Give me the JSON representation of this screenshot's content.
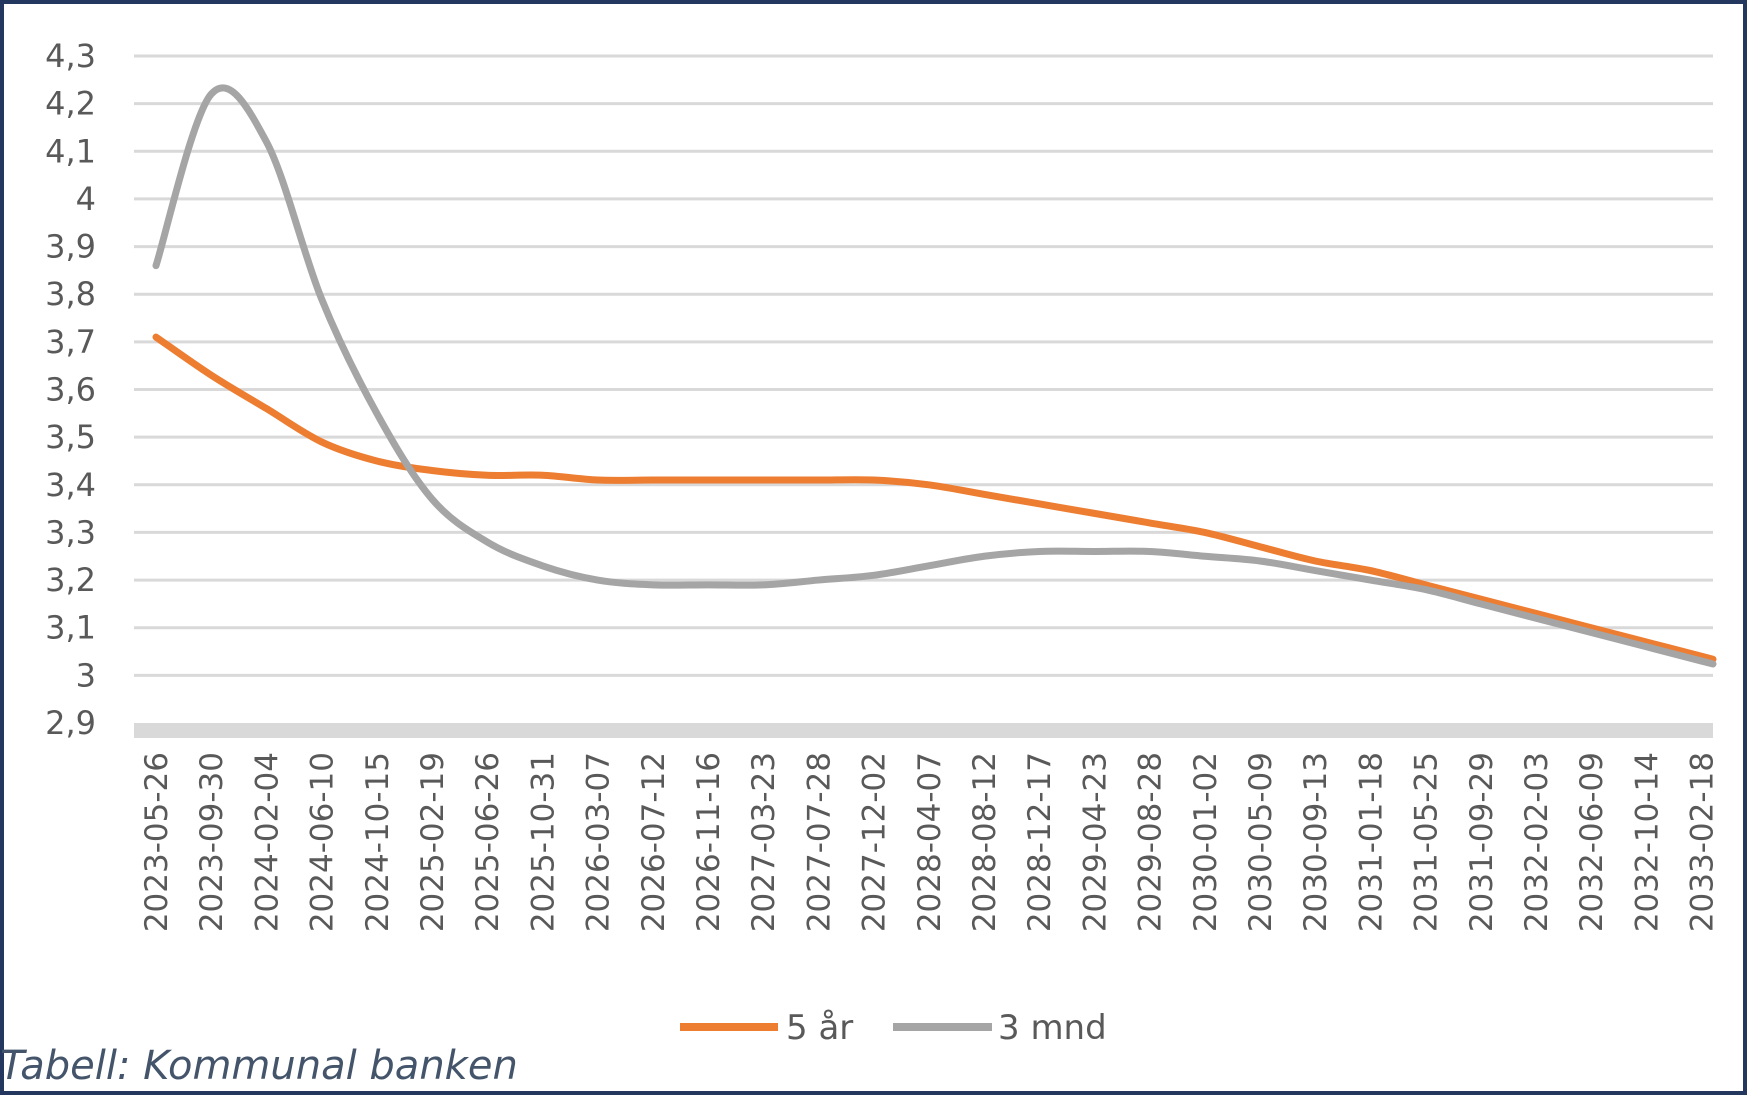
{
  "caption": "Tabell: Kommunal banken",
  "chart_data": {
    "type": "line",
    "title": "",
    "xlabel": "",
    "ylabel": "",
    "ylim": [
      2.9,
      4.3
    ],
    "yticks": [
      "4,3",
      "4,2",
      "4,1",
      "4",
      "3,9",
      "3,8",
      "3,7",
      "3,6",
      "3,5",
      "3,4",
      "3,3",
      "3,2",
      "3,1",
      "3",
      "2,9"
    ],
    "grid": true,
    "legend_position": "bottom",
    "categories": [
      "2023-05-26",
      "2023-09-30",
      "2024-02-04",
      "2024-06-10",
      "2024-10-15",
      "2025-02-19",
      "2025-06-26",
      "2025-10-31",
      "2026-03-07",
      "2026-07-12",
      "2026-11-16",
      "2027-03-23",
      "2027-07-28",
      "2027-12-02",
      "2028-04-07",
      "2028-08-12",
      "2028-12-17",
      "2029-04-23",
      "2029-08-28",
      "2030-01-02",
      "2030-05-09",
      "2030-09-13",
      "2031-01-18",
      "2031-05-25",
      "2031-09-29",
      "2032-02-03",
      "2032-06-09",
      "2032-10-14",
      "2033-02-18"
    ],
    "series": [
      {
        "name": "5 år",
        "color": "#ed7d31",
        "values": [
          3.71,
          3.63,
          3.56,
          3.49,
          3.45,
          3.43,
          3.42,
          3.42,
          3.41,
          3.41,
          3.41,
          3.41,
          3.41,
          3.41,
          3.4,
          3.38,
          3.36,
          3.34,
          3.32,
          3.3,
          3.27,
          3.24,
          3.22,
          3.19,
          3.16,
          3.13,
          3.1,
          3.07,
          3.04
        ]
      },
      {
        "name": "3 mnd",
        "color": "#a5a5a5",
        "values": [
          3.86,
          4.22,
          4.12,
          3.79,
          3.55,
          3.37,
          3.28,
          3.23,
          3.2,
          3.19,
          3.19,
          3.19,
          3.2,
          3.21,
          3.23,
          3.25,
          3.26,
          3.26,
          3.26,
          3.25,
          3.24,
          3.22,
          3.2,
          3.18,
          3.15,
          3.12,
          3.09,
          3.06,
          3.03
        ]
      }
    ]
  }
}
